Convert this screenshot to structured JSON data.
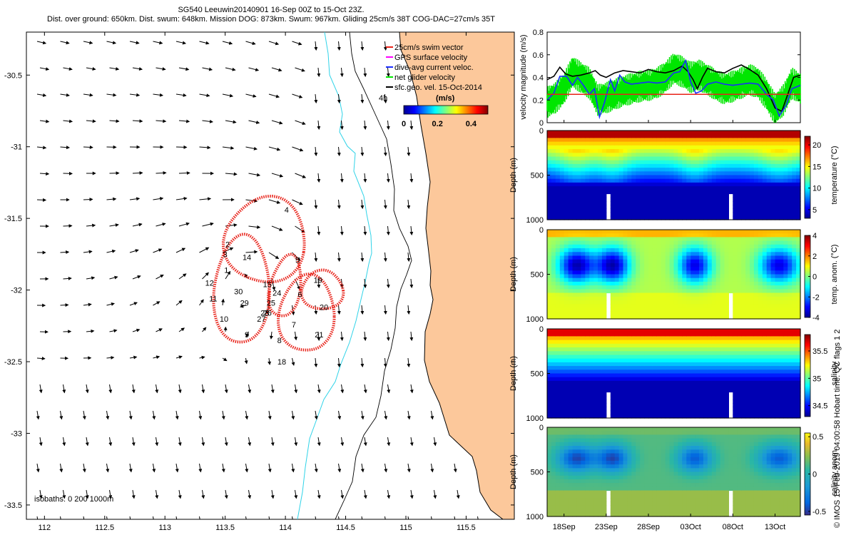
{
  "title": {
    "line1": "SG540 Leeuwin20140901 16-Sep 00Z to 15-Oct 23Z.",
    "line2": "Dist. over ground: 650km. Dist. swum: 648km. Mission DOG: 873km. Swum: 967km. Gliding 25cm/s 38T COG-DAC=27cm/s 35T"
  },
  "credit": "© IMOS 15-Feb-2019 04:00:58 Hobart time. QC flags 1  2",
  "colors": {
    "land": "#fcc89b",
    "coast_line": "#000000",
    "isobath_200": "#2fd3e8",
    "isobath_1000": "#000000",
    "track_blue": "#1a2cff",
    "track_red": "#e8231a",
    "dac_black": "#000000",
    "swim_red": "#e8231a",
    "net_green": "#00e600",
    "gps_magenta": "#ff00ff"
  },
  "chart_data": [
    {
      "type": "map",
      "name": "glider-track-map",
      "x_ticks": [
        "112",
        "112.5",
        "113",
        "113.5",
        "114",
        "114.5",
        "115",
        "115.5"
      ],
      "y_ticks": [
        "-30.5",
        "-31",
        "-31.5",
        "-32",
        "-32.5",
        "-33",
        "-33.5"
      ],
      "xlim": [
        111.85,
        115.9
      ],
      "ylim": [
        -33.6,
        -30.2
      ],
      "isobaths_label": "isobaths: 0   200   1000m",
      "legend": {
        "items": [
          {
            "label": "25cm/s swim vector",
            "color": "#e8231a"
          },
          {
            "label": "GPS surface velocity",
            "color": "#ff00ff"
          },
          {
            "label": "dive-avg current veloc.",
            "color": "#1a2cff"
          },
          {
            "label": "net glider velocity",
            "color": "#00e600"
          },
          {
            "label": "sfc.geo. vel. 15-Oct-2014",
            "color": "#000000"
          }
        ],
        "extra": "4h",
        "colorbar_title": "(m/s)",
        "colorbar_ticks": [
          "0",
          "0.2",
          "0.4"
        ],
        "colorbar_range": [
          0,
          0.5
        ]
      },
      "day_labels": [
        {
          "t": "4",
          "x": 114.01,
          "y": -31.46
        },
        {
          "t": "5",
          "x": 114.1,
          "y": -31.81
        },
        {
          "t": "6",
          "x": 114.12,
          "y": -32.05
        },
        {
          "t": "7",
          "x": 114.07,
          "y": -32.26
        },
        {
          "t": "8",
          "x": 113.95,
          "y": -32.37
        },
        {
          "t": "9",
          "x": 113.68,
          "y": -32.33
        },
        {
          "t": "10",
          "x": 113.49,
          "y": -32.22
        },
        {
          "t": "11",
          "x": 113.4,
          "y": -32.08
        },
        {
          "t": "12",
          "x": 113.37,
          "y": -31.97
        },
        {
          "t": "1",
          "x": 113.51,
          "y": -31.88
        },
        {
          "t": "2",
          "x": 113.52,
          "y": -31.7
        },
        {
          "t": "3",
          "x": 113.5,
          "y": -31.77
        },
        {
          "t": "14",
          "x": 113.68,
          "y": -31.79
        },
        {
          "t": "15",
          "x": 113.85,
          "y": -31.98
        },
        {
          "t": "24",
          "x": 113.93,
          "y": -32.04
        },
        {
          "t": "25",
          "x": 113.88,
          "y": -32.11
        },
        {
          "t": "26",
          "x": 113.85,
          "y": -32.18
        },
        {
          "t": "27",
          "x": 113.8,
          "y": -32.22
        },
        {
          "t": "28",
          "x": 113.83,
          "y": -32.18
        },
        {
          "t": "29",
          "x": 113.66,
          "y": -32.11
        },
        {
          "t": "30",
          "x": 113.61,
          "y": -32.03
        },
        {
          "t": "19",
          "x": 114.27,
          "y": -31.95
        },
        {
          "t": "20",
          "x": 114.32,
          "y": -32.14
        },
        {
          "t": "21",
          "x": 114.28,
          "y": -32.33
        },
        {
          "t": "18",
          "x": 113.97,
          "y": -32.52
        }
      ]
    },
    {
      "type": "line",
      "name": "velocity-magnitude",
      "ylabel": "velocity magnitude (m/s)",
      "ylim": [
        0,
        0.8
      ],
      "y_ticks": [
        "0",
        "0.2",
        "0.4",
        "0.6",
        "0.8"
      ],
      "xlim": [
        16,
        46
      ],
      "series": [
        {
          "color": "#000000",
          "values": [
            [
              16,
              0.38
            ],
            [
              16.8,
              0.41
            ],
            [
              17.5,
              0.49
            ],
            [
              18.2,
              0.43
            ],
            [
              19,
              0.41
            ],
            [
              20,
              0.42
            ],
            [
              21,
              0.44
            ],
            [
              21.7,
              0.46
            ],
            [
              22.3,
              0.42
            ],
            [
              23,
              0.4
            ],
            [
              24,
              0.44
            ],
            [
              25,
              0.46
            ],
            [
              26,
              0.45
            ],
            [
              27,
              0.44
            ],
            [
              28,
              0.47
            ],
            [
              29,
              0.45
            ],
            [
              30,
              0.44
            ],
            [
              31,
              0.46
            ],
            [
              32,
              0.5
            ],
            [
              32.7,
              0.45
            ],
            [
              33.3,
              0.38
            ],
            [
              33.8,
              0.3
            ],
            [
              34.4,
              0.4
            ],
            [
              35,
              0.48
            ],
            [
              36,
              0.45
            ],
            [
              37,
              0.44
            ],
            [
              38,
              0.48
            ],
            [
              39,
              0.51
            ],
            [
              40,
              0.47
            ],
            [
              41,
              0.42
            ],
            [
              42,
              0.3
            ],
            [
              43,
              0.13
            ],
            [
              43.8,
              0.1
            ],
            [
              44.5,
              0.25
            ],
            [
              45.2,
              0.4
            ],
            [
              46,
              0.42
            ]
          ]
        },
        {
          "color": "#1a2cff",
          "values": [
            [
              16,
              0.2
            ],
            [
              16.8,
              0.26
            ],
            [
              17.5,
              0.41
            ],
            [
              18.3,
              0.41
            ],
            [
              19,
              0.33
            ],
            [
              19.6,
              0.4
            ],
            [
              20.3,
              0.33
            ],
            [
              21,
              0.25
            ],
            [
              21.6,
              0.3
            ],
            [
              22.2,
              0.05
            ],
            [
              22.8,
              0.18
            ],
            [
              23.5,
              0.38
            ],
            [
              24,
              0.28
            ],
            [
              24.6,
              0.42
            ],
            [
              25.2,
              0.36
            ],
            [
              26,
              0.34
            ],
            [
              27,
              0.35
            ],
            [
              28,
              0.36
            ],
            [
              29,
              0.35
            ],
            [
              30,
              0.36
            ],
            [
              31,
              0.44
            ],
            [
              31.7,
              0.45
            ],
            [
              32.4,
              0.55
            ],
            [
              33,
              0.36
            ],
            [
              33.6,
              0.26
            ],
            [
              34.3,
              0.28
            ],
            [
              35,
              0.34
            ],
            [
              36,
              0.36
            ],
            [
              37,
              0.34
            ],
            [
              38,
              0.33
            ],
            [
              39,
              0.34
            ],
            [
              40,
              0.35
            ],
            [
              41,
              0.34
            ],
            [
              42,
              0.25
            ],
            [
              42.8,
              0.2
            ],
            [
              43.5,
              0.06
            ],
            [
              44.3,
              0.15
            ],
            [
              45,
              0.3
            ],
            [
              46,
              0.33
            ]
          ]
        },
        {
          "color": "#e8231a",
          "values": [
            [
              16,
              0.25
            ],
            [
              46,
              0.25
            ]
          ]
        }
      ],
      "green_band": {
        "color": "#00e600",
        "center": [
          [
            16,
            0.18
          ],
          [
            17,
            0.22
          ],
          [
            18,
            0.3
          ],
          [
            19,
            0.45
          ],
          [
            20,
            0.4
          ],
          [
            21,
            0.35
          ],
          [
            22,
            0.2
          ],
          [
            23,
            0.22
          ],
          [
            24,
            0.25
          ],
          [
            25,
            0.28
          ],
          [
            26,
            0.3
          ],
          [
            27,
            0.32
          ],
          [
            28,
            0.33
          ],
          [
            29,
            0.35
          ],
          [
            30,
            0.4
          ],
          [
            31,
            0.48
          ],
          [
            32,
            0.45
          ],
          [
            33,
            0.4
          ],
          [
            34,
            0.42
          ],
          [
            35,
            0.38
          ],
          [
            36,
            0.33
          ],
          [
            37,
            0.3
          ],
          [
            38,
            0.32
          ],
          [
            39,
            0.35
          ],
          [
            40,
            0.38
          ],
          [
            41,
            0.35
          ],
          [
            42,
            0.25
          ],
          [
            43,
            0.12
          ],
          [
            44,
            0.2
          ],
          [
            45,
            0.35
          ],
          [
            46,
            0.3
          ]
        ],
        "spread": 0.14
      }
    },
    {
      "type": "heatmap",
      "name": "temperature-section",
      "ylabel": "Depth (m)",
      "y_ticks": [
        "0",
        "500",
        "1000"
      ],
      "colorbar_label": "temperature (°C)",
      "colorbar_ticks": [
        "5",
        "10",
        "15",
        "20"
      ],
      "colorbar_range": [
        3,
        22
      ]
    },
    {
      "type": "heatmap",
      "name": "temp-anomaly-section",
      "ylabel": "Depth (m)",
      "y_ticks": [
        "0",
        "500",
        "1000"
      ],
      "colorbar_label": "temp. anom. (°C)",
      "colorbar_ticks": [
        "-4",
        "-2",
        "0",
        "2",
        "4"
      ],
      "colorbar_range": [
        -4,
        4
      ]
    },
    {
      "type": "heatmap",
      "name": "salinity-section",
      "ylabel": "Depth (m)",
      "y_ticks": [
        "0",
        "500",
        "1000"
      ],
      "colorbar_label": "salinity",
      "colorbar_ticks": [
        "34.5",
        "35",
        "35.5"
      ],
      "colorbar_range": [
        34.3,
        35.8
      ]
    },
    {
      "type": "heatmap",
      "name": "salinity-anomaly-section",
      "ylabel": "Depth (m)",
      "y_ticks": [
        "0",
        "500",
        "1000"
      ],
      "colorbar_label": "salinity anom.",
      "colorbar_ticks": [
        "-0.5",
        "0",
        "0.5"
      ],
      "colorbar_range": [
        -0.55,
        0.55
      ]
    }
  ],
  "time_axis": {
    "ticks": [
      {
        "label": "18Sep",
        "day": 18
      },
      {
        "label": "23Sep",
        "day": 23
      },
      {
        "label": "28Sep",
        "day": 28
      },
      {
        "label": "03Oct",
        "day": 33
      },
      {
        "label": "08Oct",
        "day": 38
      },
      {
        "label": "13Oct",
        "day": 43
      }
    ]
  }
}
